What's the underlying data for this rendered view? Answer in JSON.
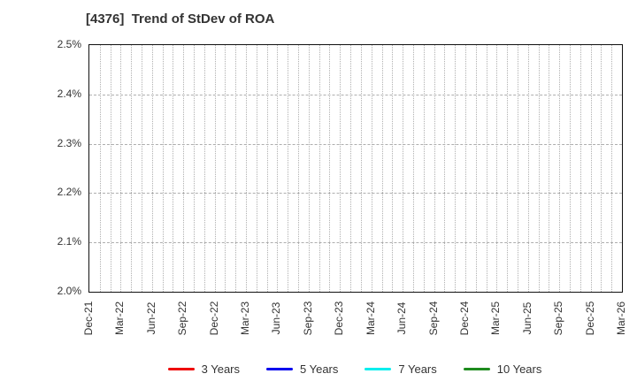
{
  "title": "[4376]  Trend of StDev of ROA",
  "chart_data": {
    "type": "line",
    "title": "[4376]  Trend of StDev of ROA",
    "x_tick_labels": [
      "Dec-21",
      "Mar-22",
      "Jun-22",
      "Sep-22",
      "Dec-22",
      "Mar-23",
      "Jun-23",
      "Sep-23",
      "Dec-23",
      "Mar-24",
      "Jun-24",
      "Sep-24",
      "Dec-24",
      "Mar-25",
      "Jun-25",
      "Sep-25",
      "Dec-25",
      "Mar-26"
    ],
    "months_per_tick": 3,
    "y_tick_labels": [
      "2.0%",
      "2.1%",
      "2.2%",
      "2.3%",
      "2.4%",
      "2.5%"
    ],
    "ylim": [
      2.0,
      2.5
    ],
    "y_unit": "%",
    "series": [
      {
        "name": "3 Years",
        "color": "#ee0000",
        "values": []
      },
      {
        "name": "5 Years",
        "color": "#0000ee",
        "values": []
      },
      {
        "name": "7 Years",
        "color": "#00eeee",
        "values": []
      },
      {
        "name": "10 Years",
        "color": "#1e8b1e",
        "values": []
      }
    ],
    "plot_empty": true,
    "grid": {
      "vertical": "monthly dotted",
      "horizontal": "0.1% dashed"
    },
    "legend_position": "bottom-center"
  },
  "colors": {
    "background": "#ffffff",
    "text": "#333333",
    "grid": "#b0b0b0",
    "axis_border": "#111111"
  }
}
